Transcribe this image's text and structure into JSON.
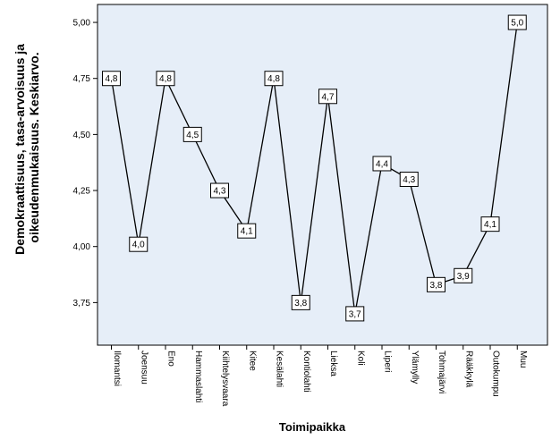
{
  "chart_data": {
    "type": "line",
    "title": "",
    "xlabel": "Toimipaikka",
    "ylabel_lines": [
      "Demokraattisuus, tasa-arvoisuus ja",
      "oikeudenmukaisuus. Keskiarvo."
    ],
    "ylim": [
      3.56,
      5.08
    ],
    "yticks": [
      3.75,
      4.0,
      4.25,
      4.5,
      4.75,
      5.0
    ],
    "ytick_labels": [
      "3,75",
      "4,00",
      "4,25",
      "4,50",
      "4,75",
      "5,00"
    ],
    "grid": false,
    "legend": "none",
    "categories": [
      "Ilomantsi",
      "Joensuu",
      "Eno",
      "Hammaslahti",
      "Kiihtelysvaara",
      "Kitee",
      "Kesälahti",
      "Kontiolahti",
      "Lieksa",
      "Koli",
      "Liperi",
      "Ylämylly",
      "Tohmajärvi",
      "Rääkkylä",
      "Outokumpu",
      "Muu"
    ],
    "values": [
      4.75,
      4.01,
      4.75,
      4.5,
      4.25,
      4.07,
      4.75,
      3.75,
      4.67,
      3.7,
      4.37,
      4.3,
      3.83,
      3.87,
      4.1,
      5.0
    ],
    "data_labels": [
      "4,8",
      "4,0",
      "4,8",
      "4,5",
      "4,3",
      "4,1",
      "4,8",
      "3,8",
      "4,7",
      "3,7",
      "4,4",
      "4,3",
      "3,8",
      "3,9",
      "4,1",
      "5,0"
    ],
    "colors": {
      "plot_background": "#e6eef8",
      "line": "#000000",
      "frame": "#000000"
    }
  }
}
